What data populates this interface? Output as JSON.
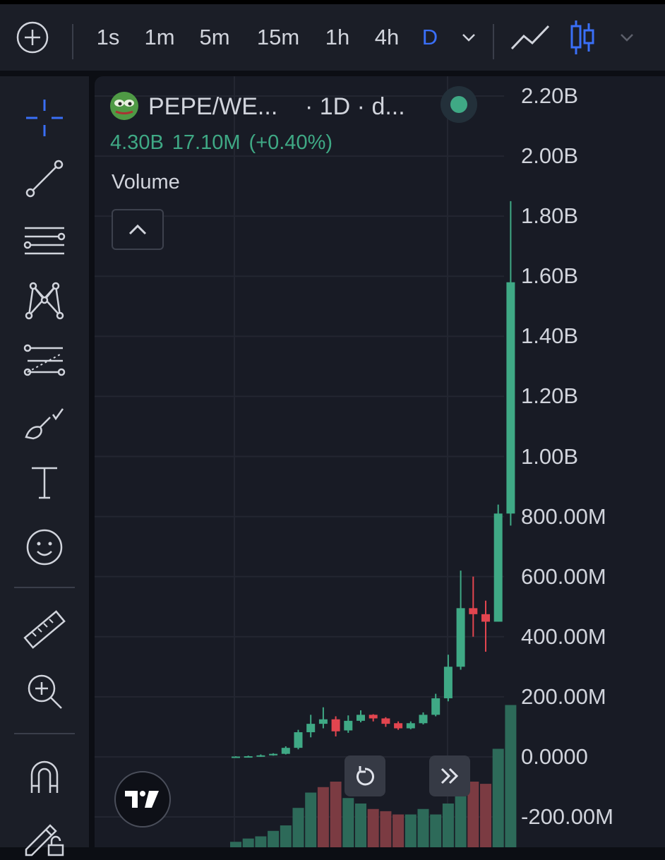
{
  "toolbar": {
    "add_icon": "plus-circle-icon",
    "timeframes": [
      "1s",
      "1m",
      "5m",
      "15m",
      "1h",
      "4h",
      "D"
    ],
    "active_timeframe": "D",
    "chart_type_icons": [
      "line-chart-icon",
      "candles-icon"
    ]
  },
  "legend": {
    "symbol": "PEPE/WE...",
    "meta": "· 1D · d...",
    "value": "4.30B",
    "change": "17.10M",
    "change_pct": "(+0.40%)",
    "volume_label": "Volume"
  },
  "colors": {
    "up": "#3fa985",
    "down": "#e2454f",
    "accent": "#3a6ff7",
    "background": "#181b25",
    "toolbar": "#1b1e27"
  },
  "tools": [
    "crosshair-icon",
    "trend-line-icon",
    "horizontal-lines-icon",
    "pattern-icon",
    "fib-projection-icon",
    "brush-icon",
    "text-icon",
    "emoji-icon",
    "ruler-icon",
    "zoom-in-icon",
    "magnet-icon",
    "lock-drawing-icon"
  ],
  "chart_data": {
    "type": "candlestick",
    "y_tick_labels": [
      "2.20B",
      "2.00B",
      "1.80B",
      "1.60B",
      "1.40B",
      "1.20B",
      "1.00B",
      "800.00M",
      "600.00M",
      "400.00M",
      "200.00M",
      "0.0000",
      "-200.00M"
    ],
    "ylim": [
      -200000000,
      2200000000
    ],
    "candles": [
      {
        "o": 0,
        "h": 2000000,
        "l": 0,
        "c": 1000000
      },
      {
        "o": 1000000,
        "h": 4000000,
        "l": 0,
        "c": 2000000
      },
      {
        "o": 2000000,
        "h": 8000000,
        "l": 0,
        "c": 5000000
      },
      {
        "o": 5000000,
        "h": 12000000,
        "l": 4000000,
        "c": 10000000
      },
      {
        "o": 10000000,
        "h": 35000000,
        "l": 8000000,
        "c": 30000000
      },
      {
        "o": 30000000,
        "h": 90000000,
        "l": 25000000,
        "c": 82000000
      },
      {
        "o": 82000000,
        "h": 140000000,
        "l": 65000000,
        "c": 110000000
      },
      {
        "o": 110000000,
        "h": 165000000,
        "l": 95000000,
        "c": 125000000
      },
      {
        "o": 125000000,
        "h": 135000000,
        "l": 68000000,
        "c": 85000000
      },
      {
        "o": 88000000,
        "h": 138000000,
        "l": 80000000,
        "c": 120000000
      },
      {
        "o": 120000000,
        "h": 155000000,
        "l": 115000000,
        "c": 140000000
      },
      {
        "o": 140000000,
        "h": 142000000,
        "l": 118000000,
        "c": 128000000
      },
      {
        "o": 128000000,
        "h": 132000000,
        "l": 100000000,
        "c": 110000000
      },
      {
        "o": 112000000,
        "h": 118000000,
        "l": 90000000,
        "c": 95000000
      },
      {
        "o": 95000000,
        "h": 118000000,
        "l": 92000000,
        "c": 112000000
      },
      {
        "o": 112000000,
        "h": 148000000,
        "l": 108000000,
        "c": 140000000
      },
      {
        "o": 140000000,
        "h": 210000000,
        "l": 135000000,
        "c": 195000000
      },
      {
        "o": 195000000,
        "h": 340000000,
        "l": 185000000,
        "c": 300000000
      },
      {
        "o": 300000000,
        "h": 620000000,
        "l": 290000000,
        "c": 495000000
      },
      {
        "o": 495000000,
        "h": 600000000,
        "l": 400000000,
        "c": 475000000
      },
      {
        "o": 475000000,
        "h": 520000000,
        "l": 350000000,
        "c": 450000000
      },
      {
        "o": 450000000,
        "h": 840000000,
        "l": 450000000,
        "c": 810000000
      },
      {
        "o": 810000000,
        "h": 1850000000,
        "l": 770000000,
        "c": 1580000000
      }
    ],
    "volume_up": [
      true,
      true,
      true,
      true,
      true,
      true,
      true,
      false,
      false,
      true,
      true,
      false,
      false,
      false,
      true,
      true,
      true,
      true,
      true,
      false,
      false,
      true,
      true
    ],
    "volume": [
      5,
      8,
      10,
      15,
      20,
      36,
      50,
      55,
      60,
      45,
      40,
      35,
      33,
      30,
      30,
      35,
      30,
      40,
      80,
      60,
      58,
      90,
      130
    ]
  }
}
